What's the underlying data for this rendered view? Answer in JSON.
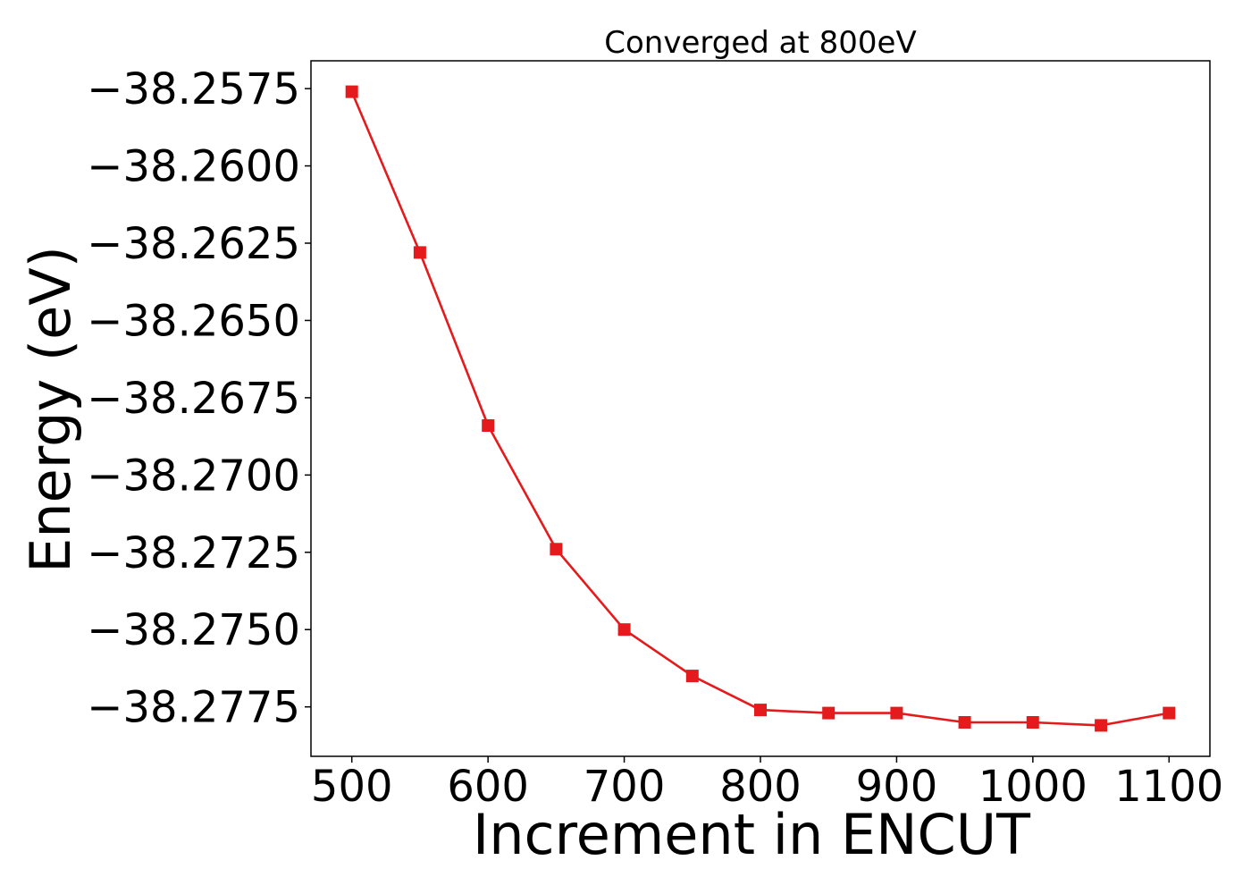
{
  "chart_data": {
    "type": "line",
    "title": "Converged at 800eV",
    "xlabel": "Increment in ENCUT",
    "ylabel": "Energy (eV)",
    "xlim": [
      470,
      1130
    ],
    "ylim": [
      -38.2791,
      -38.2566
    ],
    "xticks": [
      500,
      600,
      700,
      800,
      900,
      1000,
      1100
    ],
    "xtick_labels": [
      "500",
      "600",
      "700",
      "800",
      "900",
      "1000",
      "1100"
    ],
    "yticks": [
      -38.2575,
      -38.26,
      -38.2625,
      -38.265,
      -38.2675,
      -38.27,
      -38.2725,
      -38.275,
      -38.2775
    ],
    "ytick_labels": [
      "−38.2575",
      "−38.2600",
      "−38.2625",
      "−38.2650",
      "−38.2675",
      "−38.2700",
      "−38.2725",
      "−38.2750",
      "−38.2775"
    ],
    "grid": false,
    "series": [
      {
        "color": "#e41a1c",
        "marker": "square",
        "x": [
          500,
          550,
          600,
          650,
          700,
          750,
          800,
          850,
          900,
          950,
          1000,
          1050,
          1100
        ],
        "y": [
          -38.2576,
          -38.2628,
          -38.2684,
          -38.2724,
          -38.275,
          -38.2765,
          -38.2776,
          -38.2777,
          -38.2777,
          -38.278,
          -38.278,
          -38.2781,
          -38.2777
        ]
      }
    ]
  }
}
